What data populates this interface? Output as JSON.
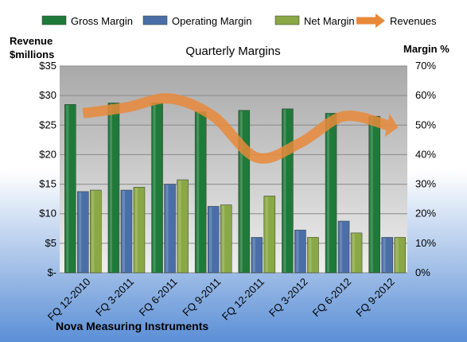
{
  "colors": {
    "gross": "#1f7a3a",
    "operating": "#4a6fa8",
    "net": "#8aa845",
    "revenue": "#e8893a",
    "plot_bg_top": "#a9a9a9",
    "plot_bg_bottom": "#eeeeee",
    "page_bg_bottom": "#5b8fd6"
  },
  "legend": [
    {
      "label": "Gross Margin",
      "key": "gross"
    },
    {
      "label": "Operating Margin",
      "key": "operating"
    },
    {
      "label": "Net Margin",
      "key": "net"
    },
    {
      "label": "Revenues",
      "key": "revenue"
    }
  ],
  "chart_data": {
    "type": "bar",
    "title": "Quarterly Margins",
    "left_axis_title": [
      "Revenue",
      "$millions"
    ],
    "right_axis_title": "Margin %",
    "footer": "Nova Measuring Instruments",
    "categories": [
      "FQ 12-2010",
      "FQ 3-2011",
      "FQ 6-2011",
      "FQ 9-2011",
      "FQ 12-2011",
      "FQ 3-2012",
      "FQ 6-2012",
      "FQ 9-2012"
    ],
    "left_axis": {
      "min": 0,
      "max": 35,
      "step": 5,
      "ticks": [
        "$-",
        "$5",
        "$10",
        "$15",
        "$20",
        "$25",
        "$30",
        "$35"
      ]
    },
    "right_axis": {
      "min": 0,
      "max": 70,
      "step": 10,
      "ticks": [
        "0%",
        "10%",
        "20%",
        "30%",
        "40%",
        "50%",
        "60%",
        "70%"
      ]
    },
    "grid": true,
    "legend_position": "top",
    "series": [
      {
        "name": "Gross Margin",
        "key": "gross",
        "axis": "right",
        "values": [
          57,
          57.5,
          57.5,
          54.5,
          55,
          55.5,
          54,
          53
        ]
      },
      {
        "name": "Operating Margin",
        "key": "operating",
        "axis": "right",
        "values": [
          27.5,
          28,
          30,
          22.5,
          12,
          14.5,
          17.5,
          12
        ]
      },
      {
        "name": "Net Margin",
        "key": "net",
        "axis": "right",
        "values": [
          28,
          29,
          31.5,
          23,
          26,
          12,
          13.5,
          12
        ]
      },
      {
        "name": "Revenues",
        "key": "revenue",
        "axis": "left",
        "type": "line",
        "values": [
          27,
          28,
          29.5,
          26.5,
          19.5,
          22,
          26.5,
          25
        ]
      }
    ]
  }
}
